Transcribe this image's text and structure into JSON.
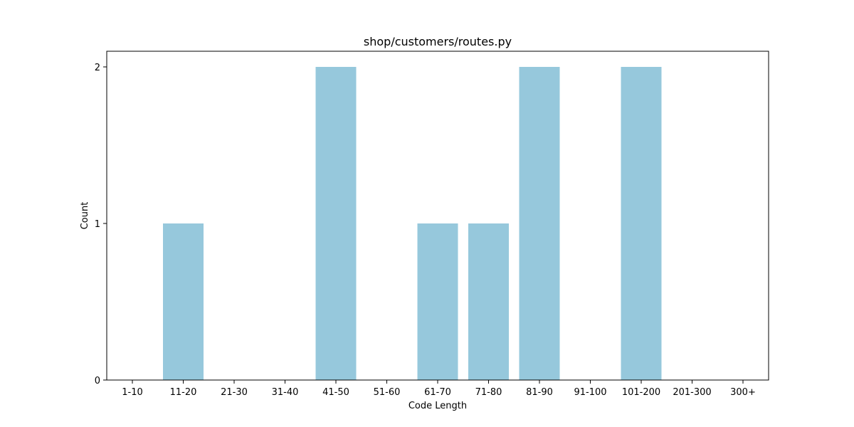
{
  "chart_data": {
    "type": "bar",
    "title": "shop/customers/routes.py",
    "xlabel": "Code Length",
    "ylabel": "Count",
    "categories": [
      "1-10",
      "11-20",
      "21-30",
      "31-40",
      "41-50",
      "51-60",
      "61-70",
      "71-80",
      "81-90",
      "91-100",
      "101-200",
      "201-300",
      "300+"
    ],
    "values": [
      0,
      1,
      0,
      0,
      2,
      0,
      1,
      1,
      2,
      0,
      2,
      0,
      0
    ],
    "ylim": [
      0,
      2.1
    ],
    "yticks": [
      0,
      1,
      2
    ],
    "bar_color": "#96c8dc",
    "grid": false,
    "legend": "none"
  }
}
